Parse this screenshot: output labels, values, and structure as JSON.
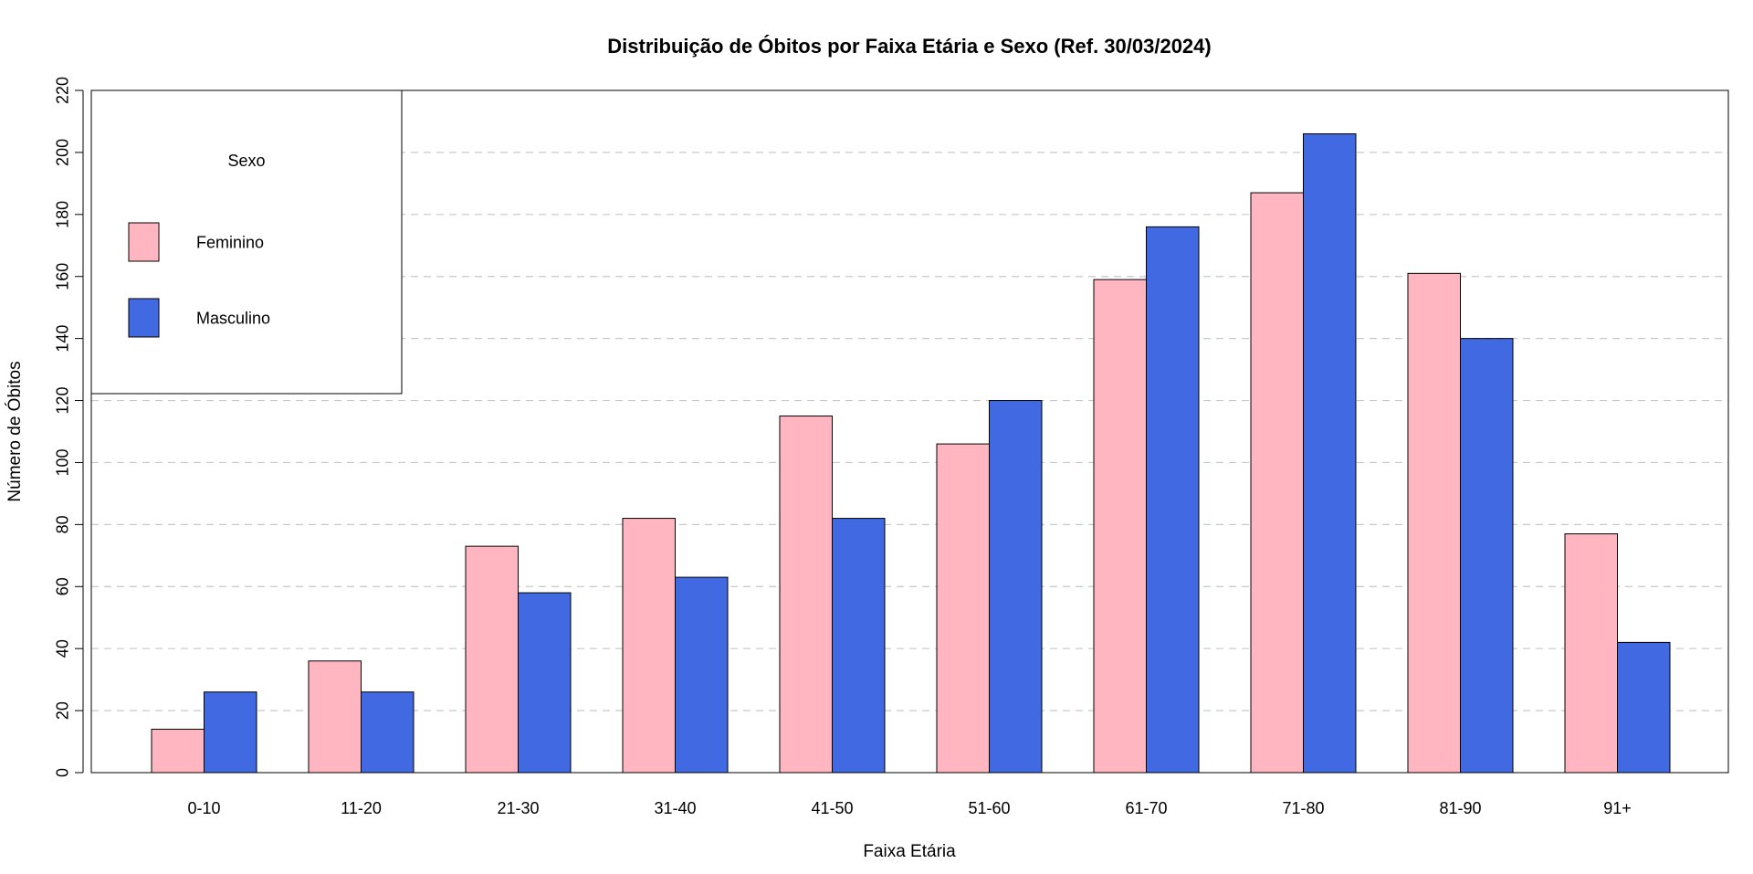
{
  "chart_data": {
    "type": "bar",
    "title": "Distribuição de Óbitos por Faixa Etária e Sexo (Ref. 30/03/2024)",
    "xlabel": "Faixa Etária",
    "ylabel": "Número de Óbitos",
    "categories": [
      "0-10",
      "11-20",
      "21-30",
      "31-40",
      "41-50",
      "51-60",
      "61-70",
      "71-80",
      "81-90",
      "91+"
    ],
    "series": [
      {
        "name": "Feminino",
        "color": "#FFB6C1",
        "values": [
          14,
          36,
          73,
          82,
          115,
          106,
          159,
          187,
          161,
          77
        ]
      },
      {
        "name": "Masculino",
        "color": "#4169E1",
        "values": [
          26,
          26,
          58,
          63,
          82,
          120,
          176,
          206,
          140,
          42
        ]
      }
    ],
    "ylim": [
      0,
      220
    ],
    "yticks": [
      0,
      20,
      40,
      60,
      80,
      100,
      120,
      140,
      160,
      180,
      200,
      220
    ],
    "grid": "horizontal-dashed",
    "legend": {
      "title": "Sexo",
      "placement": "top-left"
    }
  }
}
